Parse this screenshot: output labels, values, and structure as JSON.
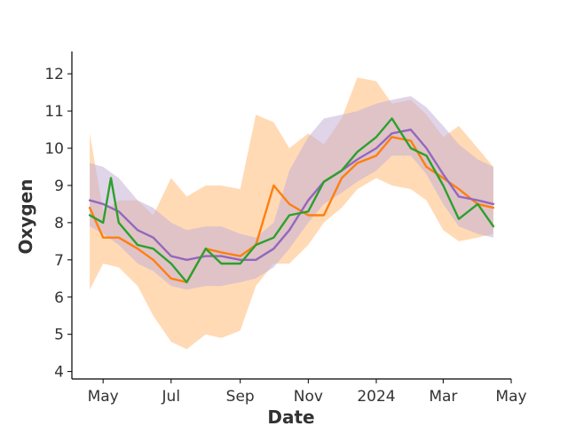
{
  "chart_data": {
    "type": "line",
    "title": "",
    "xlabel": "Date",
    "ylabel": "Oxygen",
    "xlim": [
      "2023-04-03",
      "2024-05-01"
    ],
    "ylim": [
      3.8,
      12.6
    ],
    "grid": false,
    "legend": "none",
    "x_ticks": [
      {
        "date": "2023-05-01",
        "label": "May"
      },
      {
        "date": "2023-07-01",
        "label": "Jul"
      },
      {
        "date": "2023-09-01",
        "label": "Sep"
      },
      {
        "date": "2023-11-01",
        "label": "Nov"
      },
      {
        "date": "2024-01-01",
        "label": "2024"
      },
      {
        "date": "2024-03-01",
        "label": "Mar"
      },
      {
        "date": "2024-05-01",
        "label": "May"
      }
    ],
    "y_ticks": [
      4,
      5,
      6,
      7,
      8,
      9,
      10,
      11,
      12
    ],
    "series": [
      {
        "color": "#ff7f0e",
        "band_color": "#ffbb78",
        "x": [
          "2023-04-19",
          "2023-05-01",
          "2023-05-15",
          "2023-06-01",
          "2023-06-15",
          "2023-07-01",
          "2023-07-15",
          "2023-08-01",
          "2023-08-15",
          "2023-09-01",
          "2023-09-15",
          "2023-10-01",
          "2023-10-15",
          "2023-11-01",
          "2023-11-15",
          "2023-12-01",
          "2023-12-15",
          "2024-01-01",
          "2024-01-15",
          "2024-02-01",
          "2024-02-15",
          "2024-03-01",
          "2024-03-15",
          "2024-04-01",
          "2024-04-15"
        ],
        "values": [
          8.4,
          7.6,
          7.6,
          7.3,
          7.0,
          6.5,
          6.4,
          7.3,
          7.2,
          7.1,
          7.4,
          9.0,
          8.5,
          8.2,
          8.2,
          9.2,
          9.6,
          9.8,
          10.3,
          10.2,
          9.5,
          9.2,
          8.9,
          8.5,
          8.4
        ],
        "lower": [
          6.2,
          6.9,
          6.8,
          6.3,
          5.5,
          4.8,
          4.6,
          5.0,
          4.9,
          5.1,
          6.3,
          6.9,
          6.9,
          7.4,
          8.0,
          8.4,
          8.9,
          9.2,
          9.0,
          8.9,
          8.6,
          7.8,
          7.5,
          7.6,
          7.7
        ],
        "upper": [
          10.4,
          8.3,
          8.6,
          8.6,
          8.2,
          9.2,
          8.7,
          9.0,
          9.0,
          8.9,
          10.9,
          10.7,
          10.0,
          10.4,
          10.1,
          10.8,
          11.9,
          11.8,
          11.2,
          11.3,
          10.9,
          10.3,
          10.6,
          10.0,
          9.5
        ]
      },
      {
        "color": "#9467bd",
        "band_color": "#c5b0d5",
        "x": [
          "2023-04-19",
          "2023-05-01",
          "2023-05-15",
          "2023-06-01",
          "2023-06-15",
          "2023-07-01",
          "2023-07-15",
          "2023-08-01",
          "2023-08-15",
          "2023-09-01",
          "2023-09-15",
          "2023-10-01",
          "2023-10-15",
          "2023-11-01",
          "2023-11-15",
          "2023-12-01",
          "2023-12-15",
          "2024-01-01",
          "2024-01-15",
          "2024-02-01",
          "2024-02-15",
          "2024-03-01",
          "2024-03-15",
          "2024-04-01",
          "2024-04-15"
        ],
        "values": [
          8.6,
          8.5,
          8.3,
          7.8,
          7.6,
          7.1,
          7.0,
          7.1,
          7.1,
          7.0,
          7.0,
          7.3,
          7.8,
          8.6,
          9.1,
          9.4,
          9.7,
          10.0,
          10.4,
          10.5,
          10.0,
          9.3,
          8.7,
          8.6,
          8.5
        ],
        "lower": [
          7.9,
          7.7,
          7.4,
          6.9,
          6.7,
          6.3,
          6.2,
          6.3,
          6.3,
          6.4,
          6.5,
          6.8,
          7.3,
          8.0,
          8.5,
          8.8,
          9.1,
          9.4,
          9.8,
          9.8,
          9.3,
          8.5,
          7.9,
          7.7,
          7.6
        ],
        "upper": [
          9.6,
          9.5,
          9.2,
          8.6,
          8.4,
          8.0,
          7.8,
          7.9,
          7.9,
          7.7,
          7.6,
          8.0,
          9.4,
          10.3,
          10.8,
          10.9,
          11.0,
          11.2,
          11.3,
          11.4,
          11.1,
          10.6,
          10.1,
          9.7,
          9.5
        ]
      },
      {
        "color": "#2ca02c",
        "x": [
          "2023-04-19",
          "2023-05-01",
          "2023-05-08",
          "2023-05-15",
          "2023-06-01",
          "2023-06-15",
          "2023-07-01",
          "2023-07-15",
          "2023-08-01",
          "2023-08-15",
          "2023-09-01",
          "2023-09-15",
          "2023-10-01",
          "2023-10-15",
          "2023-11-01",
          "2023-11-15",
          "2023-12-01",
          "2023-12-15",
          "2024-01-01",
          "2024-01-15",
          "2024-02-01",
          "2024-02-15",
          "2024-03-01",
          "2024-03-15",
          "2024-04-01",
          "2024-04-15"
        ],
        "values": [
          8.2,
          8.0,
          9.2,
          8.0,
          7.4,
          7.3,
          6.9,
          6.4,
          7.3,
          6.9,
          6.9,
          7.4,
          7.6,
          8.2,
          8.3,
          9.1,
          9.4,
          9.9,
          10.3,
          10.8,
          10.0,
          9.8,
          9.0,
          8.1,
          8.5,
          7.9
        ]
      }
    ]
  }
}
